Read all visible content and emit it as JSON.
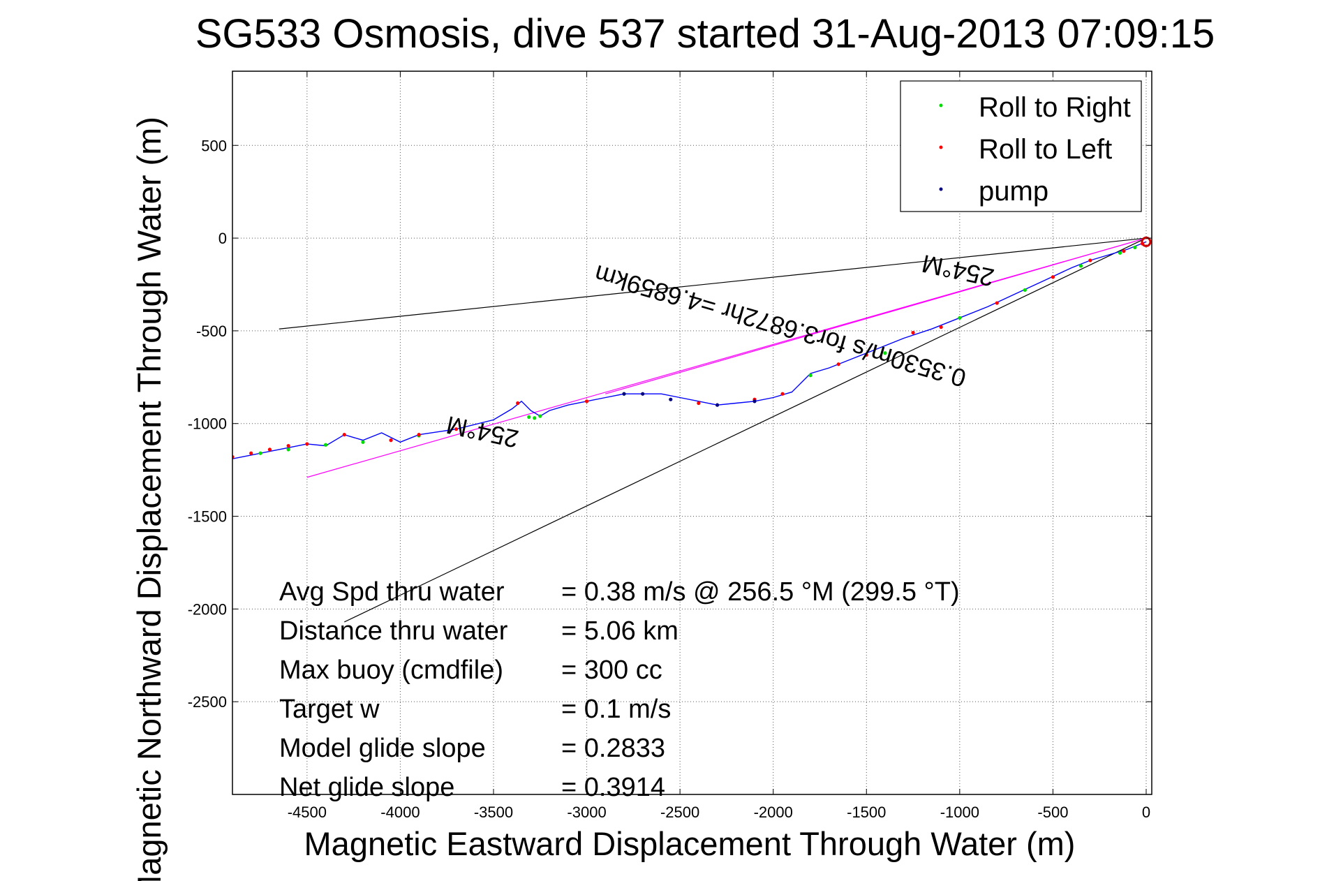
{
  "chart_data": {
    "type": "line",
    "title": "SG533 Osmosis, dive 537 started 31-Aug-2013 07:09:15",
    "xlabel": "Magnetic Eastward Displacement Through Water (m)",
    "ylabel": "Magnetic Northward Displacement Through Water (m)",
    "xlim": [
      -4900,
      30
    ],
    "ylim": [
      -3000,
      900
    ],
    "xticks": [
      -4500,
      -4000,
      -3500,
      -3000,
      -2500,
      -2000,
      -1500,
      -1000,
      -500,
      0
    ],
    "yticks": [
      500,
      0,
      -500,
      -1000,
      -1500,
      -2000,
      -2500
    ],
    "grid": true,
    "legend_position": "top-right",
    "legend": [
      {
        "label": "Roll to Right",
        "color": "#00dd00"
      },
      {
        "label": "Roll to Left",
        "color": "#ff0000"
      },
      {
        "label": "pump",
        "color": "#000080"
      }
    ],
    "track": {
      "name": "glider track",
      "color": "#0000ff",
      "x": [
        0,
        -100,
        -200,
        -300,
        -400,
        -550,
        -700,
        -850,
        -1000,
        -1150,
        -1300,
        -1450,
        -1600,
        -1700,
        -1800,
        -1850,
        -1900,
        -2000,
        -2100,
        -2200,
        -2300,
        -2400,
        -2500,
        -2600,
        -2700,
        -2800,
        -2900,
        -3000,
        -3100,
        -3200,
        -3250,
        -3300,
        -3350,
        -3400,
        -3500,
        -3700,
        -3900,
        -4000,
        -4100,
        -4200,
        -4300,
        -4400,
        -4500,
        -4600,
        -4700,
        -4800,
        -4900
      ],
      "y": [
        -20,
        -60,
        -90,
        -120,
        -160,
        -230,
        -300,
        -370,
        -430,
        -490,
        -540,
        -600,
        -660,
        -700,
        -730,
        -780,
        -830,
        -860,
        -880,
        -890,
        -900,
        -880,
        -860,
        -840,
        -840,
        -840,
        -860,
        -880,
        -900,
        -930,
        -960,
        -930,
        -880,
        -920,
        -980,
        -1030,
        -1060,
        -1100,
        -1050,
        -1090,
        -1060,
        -1120,
        -1110,
        -1130,
        -1150,
        -1170,
        -1190
      ]
    },
    "roll_right": {
      "x": [
        -60,
        -140,
        -350,
        -650,
        -1000,
        -1400,
        -1800,
        -2800,
        -3250,
        -3280,
        -3310,
        -3900,
        -4200,
        -4400,
        -4600,
        -4750
      ],
      "y": [
        -50,
        -80,
        -150,
        -280,
        -430,
        -620,
        -740,
        -840,
        -960,
        -970,
        -965,
        -1065,
        -1100,
        -1115,
        -1140,
        -1160
      ]
    },
    "roll_left": {
      "x": [
        -20,
        -120,
        -300,
        -500,
        -800,
        -1100,
        -1250,
        -1500,
        -1650,
        -1950,
        -2100,
        -2400,
        -3000,
        -3370,
        -3700,
        -3900,
        -4050,
        -4300,
        -4500,
        -4600,
        -4700,
        -4800,
        -4900
      ],
      "y": [
        -30,
        -70,
        -120,
        -210,
        -350,
        -480,
        -510,
        -630,
        -680,
        -840,
        -870,
        -890,
        -880,
        -890,
        -1030,
        -1060,
        -1090,
        -1060,
        -1110,
        -1120,
        -1140,
        -1160,
        -1180
      ]
    },
    "pump": {
      "x": [
        -2800,
        -2700,
        -2550,
        -2300,
        -2100
      ],
      "y": [
        -840,
        -840,
        -870,
        -900,
        -880
      ]
    },
    "reference_lines": [
      {
        "name": "line-upper-black",
        "color": "#000000",
        "x": [
          0,
          -4650
        ],
        "y": [
          0,
          -490
        ]
      },
      {
        "name": "line-lower-black",
        "color": "#000000",
        "x": [
          0,
          -4300
        ],
        "y": [
          0,
          -2070
        ]
      },
      {
        "name": "line-magenta-a",
        "color": "#ff00ff",
        "x": [
          0,
          -4500
        ],
        "y": [
          0,
          -1290
        ]
      },
      {
        "name": "line-magenta-b",
        "color": "#ff00ff",
        "x": [
          0,
          -2900
        ],
        "y": [
          0,
          -840
        ]
      }
    ],
    "end_circle": {
      "x": 0,
      "y": -20,
      "color": "#cc0000"
    },
    "annotations": [
      {
        "text": "254°M",
        "x": -1000,
        "y": -130,
        "angle": 192
      },
      {
        "text": "0.3530m/s for3.6872hr =4.6859km",
        "x": -1950,
        "y": -430,
        "angle": 196
      },
      {
        "text": "254°M",
        "x": -3550,
        "y": -1000,
        "angle": 192
      }
    ]
  },
  "stats": {
    "rows": [
      {
        "label": "Avg Spd thru water",
        "value": "=  0.38 m/s @ 256.5 °M (299.5 °T)"
      },
      {
        "label": "Distance thru water",
        "value": "=  5.06 km"
      },
      {
        "label": "Max buoy (cmdfile)",
        "value": "= 300 cc"
      },
      {
        "label": "Target w",
        "value": "= 0.1 m/s"
      },
      {
        "label": "Model glide slope",
        "value": "= 0.2833"
      },
      {
        "label": "Net glide slope",
        "value": "= 0.3914"
      }
    ]
  }
}
